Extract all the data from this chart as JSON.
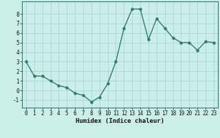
{
  "x": [
    0,
    1,
    2,
    3,
    4,
    5,
    6,
    7,
    8,
    9,
    10,
    11,
    12,
    13,
    14,
    15,
    16,
    17,
    18,
    19,
    20,
    21,
    22,
    23
  ],
  "y": [
    3.0,
    1.5,
    1.5,
    1.0,
    0.5,
    0.3,
    -0.3,
    -0.5,
    -1.2,
    -0.7,
    0.7,
    3.0,
    6.5,
    8.5,
    8.5,
    5.3,
    7.5,
    6.5,
    5.5,
    5.0,
    5.0,
    4.2,
    5.1,
    5.0
  ],
  "line_color": "#2d7a6e",
  "marker_color": "#2d7a6e",
  "bg_color": "#cceee8",
  "grid_color": "#a8d8d0",
  "xlabel": "Humidex (Indice chaleur)",
  "xlim": [
    -0.5,
    23.5
  ],
  "ylim": [
    -1.8,
    9.3
  ],
  "yticks": [
    -1,
    0,
    1,
    2,
    3,
    4,
    5,
    6,
    7,
    8
  ],
  "xtick_labels": [
    "0",
    "1",
    "2",
    "3",
    "4",
    "5",
    "6",
    "7",
    "8",
    "9",
    "10",
    "11",
    "12",
    "13",
    "14",
    "15",
    "16",
    "17",
    "18",
    "19",
    "20",
    "21",
    "22",
    "23"
  ],
  "tick_fontsize": 5.5,
  "xlabel_fontsize": 6.5,
  "marker_size": 2.2,
  "line_width": 1.0
}
